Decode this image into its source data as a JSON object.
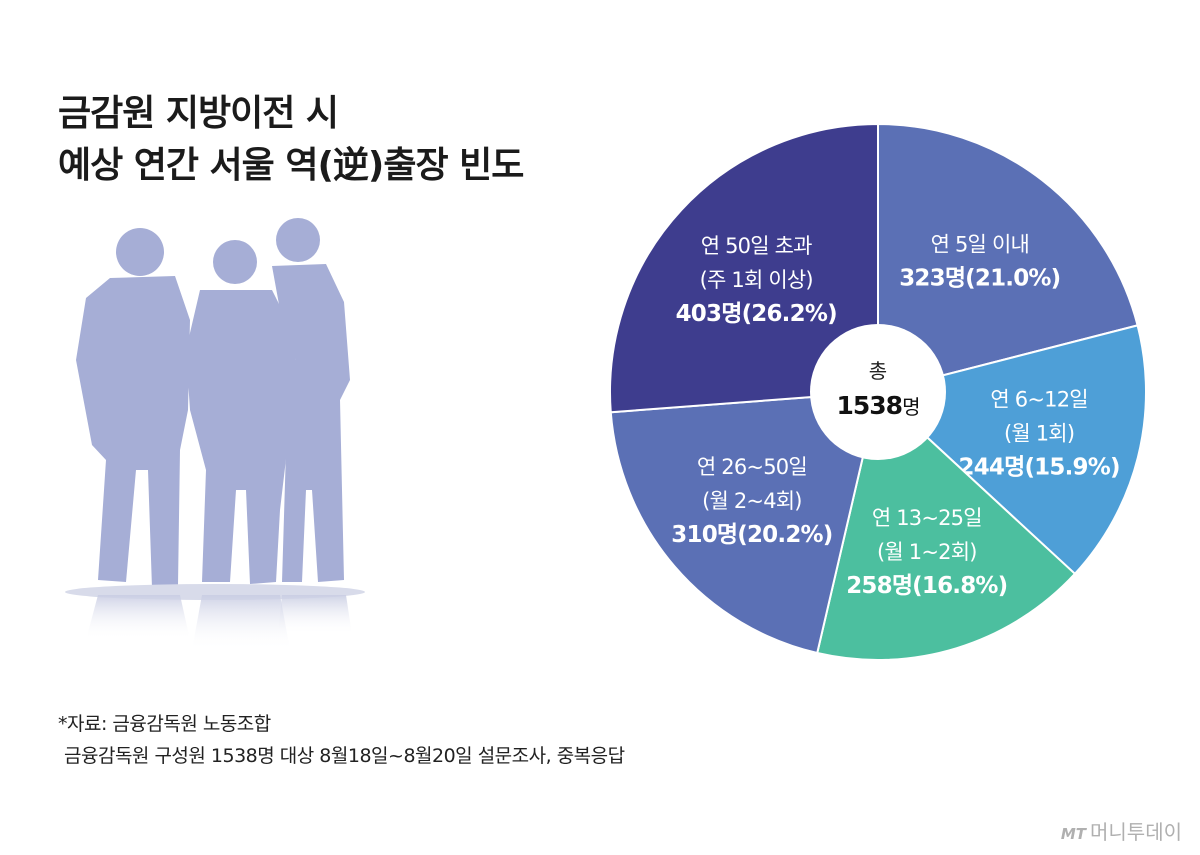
{
  "title": {
    "line1": "금감원 지방이전 시",
    "line2": "예상 연간 서울 역(逆)출장 빈도"
  },
  "chart_data": {
    "type": "pie",
    "center_label": {
      "line1": "총",
      "number": "1538",
      "unit": "명"
    },
    "total": 1538,
    "slices": [
      {
        "label_lines": [
          "연 5일 이내"
        ],
        "value_label": "323명(21.0%)",
        "count": 323,
        "percent": 21.0,
        "color": "#5b70b5"
      },
      {
        "label_lines": [
          "연 6~12일",
          "(월 1회)"
        ],
        "value_label": "244명(15.9%)",
        "count": 244,
        "percent": 15.9,
        "color": "#4e9fd7"
      },
      {
        "label_lines": [
          "연 13~25일",
          "(월 1~2회)"
        ],
        "value_label": "258명(16.8%)",
        "count": 258,
        "percent": 16.8,
        "color": "#4cbf9f"
      },
      {
        "label_lines": [
          "연 26~50일",
          "(월 2~4회)"
        ],
        "value_label": "310명(20.2%)",
        "count": 310,
        "percent": 20.2,
        "color": "#5b70b5"
      },
      {
        "label_lines": [
          "연 50일 초과",
          "(주 1회 이상)"
        ],
        "value_label": "403명(26.2%)",
        "count": 403,
        "percent": 26.2,
        "color": "#3e3d8e"
      }
    ]
  },
  "footnote": {
    "line1": "*자료: 금융감독원 노동조합",
    "line2": "금융감독원 구성원 1538명 대상 8월18일~8월20일 설문조사, 중복응답"
  },
  "logo": {
    "mark": "MT",
    "text": "머니투데이"
  },
  "colors": {
    "figure": "#a6aed6",
    "figure_shadow": "#cfd3e6"
  }
}
